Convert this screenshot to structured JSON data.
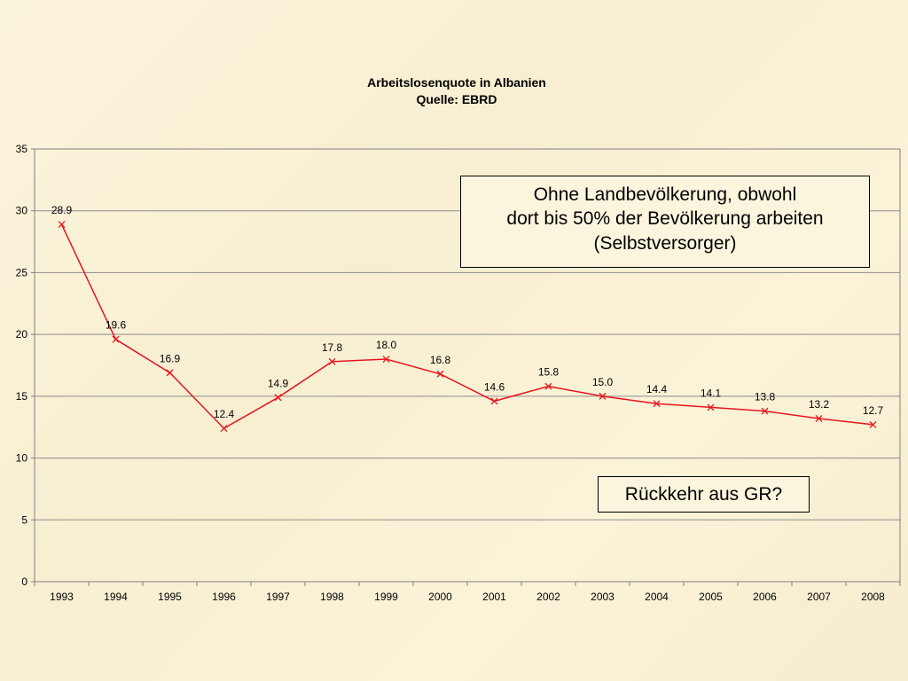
{
  "chart_data": {
    "type": "line",
    "title": "Arbeitslosenquote in Albanien",
    "subtitle": "Quelle: EBRD",
    "xlabel": "",
    "ylabel": "",
    "categories": [
      "1993",
      "1994",
      "1995",
      "1996",
      "1997",
      "1998",
      "1999",
      "2000",
      "2001",
      "2002",
      "2003",
      "2004",
      "2005",
      "2006",
      "2007",
      "2008"
    ],
    "series": [
      {
        "values": [
          28.9,
          19.6,
          16.9,
          12.4,
          14.9,
          17.8,
          18.0,
          16.8,
          14.6,
          15.8,
          15.0,
          14.4,
          14.1,
          13.8,
          13.2,
          12.7
        ],
        "labels": [
          "28.9",
          "19.6",
          "16.9",
          "12.4",
          "14.9",
          "17.8",
          "18.0",
          "16.8",
          "14.6",
          "15.8",
          "15.0",
          "14.4",
          "14.1",
          "13.8",
          "13.2",
          "12.7"
        ],
        "color": "#e8141c",
        "marker": "x"
      }
    ],
    "ylim": [
      0,
      35
    ],
    "yticks": [
      0,
      5,
      10,
      15,
      20,
      25,
      30,
      35
    ],
    "grid": true,
    "legend": "none"
  },
  "annotations": {
    "main_lines": [
      "Ohne Landbevölkerung, obwohl",
      "dort bis 50% der Bevölkerung arbeiten",
      "(Selbstversorger)"
    ],
    "return_text": "Rückkehr aus GR?"
  },
  "colors": {
    "line": "#e8141c",
    "grid": "#8c8c8c",
    "axis": "#808080"
  }
}
